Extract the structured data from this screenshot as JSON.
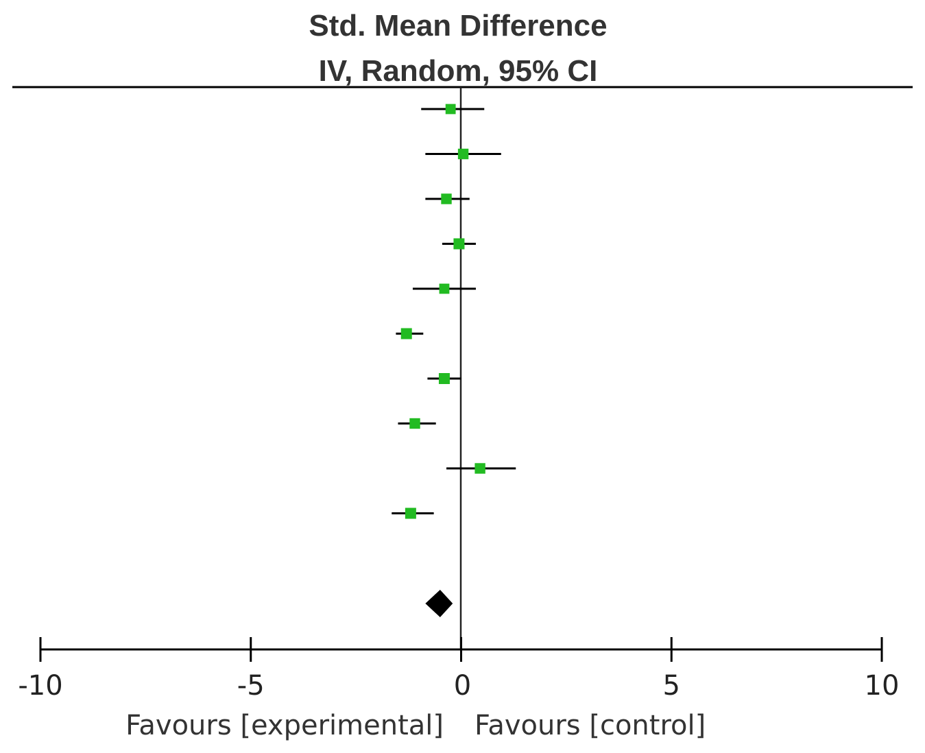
{
  "chart_data": {
    "type": "forest",
    "title": "Std. Mean Difference",
    "subtitle": "IV, Random, 95% CI",
    "xlim": [
      -10,
      10
    ],
    "xticks": [
      {
        "value": -10,
        "label": "-10"
      },
      {
        "value": -5,
        "label": "-5"
      },
      {
        "value": 0,
        "label": "0"
      },
      {
        "value": 5,
        "label": "5"
      },
      {
        "value": 10,
        "label": "10"
      }
    ],
    "favours_left": "Favours [experimental]",
    "favours_right": "Favours [control]",
    "studies": [
      {
        "estimate": -0.25,
        "ci": [
          -0.95,
          0.55
        ],
        "weight": 0.8
      },
      {
        "estimate": 0.05,
        "ci": [
          -0.85,
          0.95
        ],
        "weight": 0.9
      },
      {
        "estimate": -0.35,
        "ci": [
          -0.85,
          0.2
        ],
        "weight": 0.9
      },
      {
        "estimate": -0.05,
        "ci": [
          -0.45,
          0.35
        ],
        "weight": 1.0
      },
      {
        "estimate": -0.4,
        "ci": [
          -1.15,
          0.35
        ],
        "weight": 0.8
      },
      {
        "estimate": -1.3,
        "ci": [
          -1.55,
          -0.9
        ],
        "weight": 1.0
      },
      {
        "estimate": -0.4,
        "ci": [
          -0.8,
          0.0
        ],
        "weight": 1.0
      },
      {
        "estimate": -1.1,
        "ci": [
          -1.5,
          -0.6
        ],
        "weight": 0.9
      },
      {
        "estimate": 0.45,
        "ci": [
          -0.35,
          1.3
        ],
        "weight": 0.9
      },
      {
        "estimate": -1.2,
        "ci": [
          -1.65,
          -0.65
        ],
        "weight": 1.0
      }
    ],
    "overall": {
      "estimate": -0.5,
      "ci": [
        -0.85,
        -0.2
      ]
    },
    "colors": {
      "study_marker": "#22bb22",
      "overall_marker": "#000000",
      "lines": "#000000"
    }
  }
}
